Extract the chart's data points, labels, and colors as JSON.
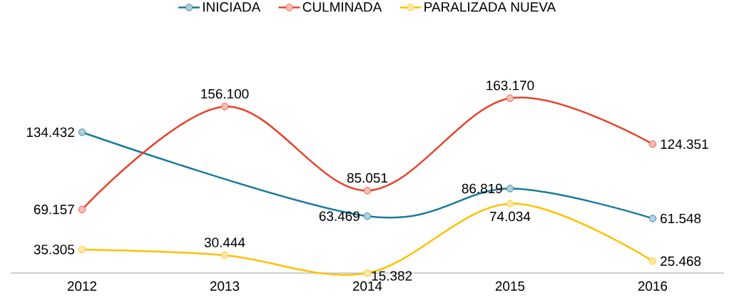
{
  "chart_data": {
    "type": "line",
    "categories": [
      "2012",
      "2013",
      "2014",
      "2015",
      "2016"
    ],
    "series": [
      {
        "name": "INICIADA",
        "color": "#1a7a9c",
        "values": [
          134432,
          null,
          63469,
          86819,
          61548
        ],
        "value_labels": [
          "134.432",
          null,
          "63.469",
          "86.819",
          "61.548"
        ]
      },
      {
        "name": "CULMINADA",
        "color": "#e8432a",
        "values": [
          69157,
          156100,
          85051,
          163170,
          124351
        ],
        "value_labels": [
          "69.157",
          "156.100",
          "85.051",
          "163.170",
          "124.351"
        ]
      },
      {
        "name": "PARALIZADA NUEVA",
        "color": "#ffc000",
        "values": [
          35305,
          30444,
          15382,
          74034,
          25468
        ],
        "value_labels": [
          "35.305",
          "30.444",
          "15.382",
          "74.034",
          "25.468"
        ]
      }
    ],
    "tick_labels": "x",
    "legend": "top",
    "grid": false,
    "marker": "circle",
    "line_style": "solid"
  }
}
